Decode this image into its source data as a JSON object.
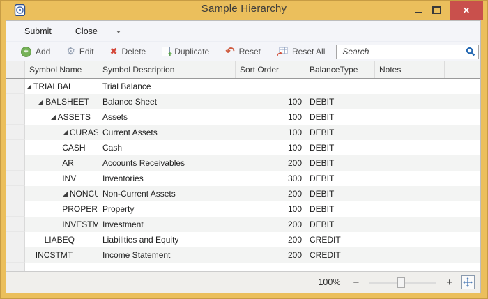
{
  "window": {
    "title": "Sample Hierarchy"
  },
  "titlebar": {
    "close_glyph": "✕",
    "buttons": [
      "minimize",
      "maximize",
      "close"
    ]
  },
  "menubar": {
    "items": [
      {
        "label": "Submit"
      },
      {
        "label": "Close"
      }
    ]
  },
  "toolbar": {
    "buttons": [
      {
        "id": "add",
        "label": "Add"
      },
      {
        "id": "edit",
        "label": "Edit"
      },
      {
        "id": "delete",
        "label": "Delete"
      },
      {
        "id": "duplicate",
        "label": "Duplicate"
      },
      {
        "id": "reset",
        "label": "Reset"
      },
      {
        "id": "reset-all",
        "label": "Reset All"
      }
    ],
    "icon_glyphs": {
      "add": "+",
      "edit": "⚙",
      "delete": "✖",
      "reset": "↶"
    },
    "search": {
      "placeholder": "Search",
      "value": ""
    }
  },
  "grid": {
    "columns": [
      {
        "key": "name",
        "label": "Symbol Name"
      },
      {
        "key": "desc",
        "label": "Symbol Description"
      },
      {
        "key": "sort",
        "label": "Sort Order"
      },
      {
        "key": "balance",
        "label": "BalanceType"
      },
      {
        "key": "notes",
        "label": "Notes"
      }
    ],
    "rows": [
      {
        "name": "TRIALBAL",
        "desc": "Trial Balance",
        "sort": "",
        "balance": "",
        "notes": "",
        "level": 1,
        "expandable": true,
        "expanded": true
      },
      {
        "name": "BALSHEET",
        "desc": "Balance Sheet",
        "sort": "100",
        "balance": "DEBIT",
        "notes": "",
        "level": 2,
        "expandable": true,
        "expanded": true
      },
      {
        "name": "ASSETS",
        "desc": "Assets",
        "sort": "100",
        "balance": "DEBIT",
        "notes": "",
        "level": 3,
        "expandable": true,
        "expanded": true
      },
      {
        "name": "CURASSETS",
        "desc": "Current Assets",
        "sort": "100",
        "balance": "DEBIT",
        "notes": "",
        "level": 4,
        "expandable": true,
        "expanded": true
      },
      {
        "name": "CASH",
        "desc": "Cash",
        "sort": "100",
        "balance": "DEBIT",
        "notes": "",
        "level": 5,
        "expandable": false,
        "expanded": false
      },
      {
        "name": "AR",
        "desc": "Accounts Receivables",
        "sort": "200",
        "balance": "DEBIT",
        "notes": "",
        "level": 5,
        "expandable": false,
        "expanded": false
      },
      {
        "name": "INV",
        "desc": "Inventories",
        "sort": "300",
        "balance": "DEBIT",
        "notes": "",
        "level": 5,
        "expandable": false,
        "expanded": false
      },
      {
        "name": "NONCURAS",
        "desc": "Non-Current Assets",
        "sort": "200",
        "balance": "DEBIT",
        "notes": "",
        "level": 4,
        "expandable": true,
        "expanded": true
      },
      {
        "name": "PROPERT",
        "desc": "Property",
        "sort": "100",
        "balance": "DEBIT",
        "notes": "",
        "level": 5,
        "expandable": false,
        "expanded": false
      },
      {
        "name": "INVESTM",
        "desc": "Investment",
        "sort": "200",
        "balance": "DEBIT",
        "notes": "",
        "level": 5,
        "expandable": false,
        "expanded": false
      },
      {
        "name": "LIABEQ",
        "desc": "Liabilities and Equity",
        "sort": "200",
        "balance": "CREDIT",
        "notes": "",
        "level": 3,
        "expandable": false,
        "expanded": false
      },
      {
        "name": "INCSTMT",
        "desc": "Income Statement",
        "sort": "200",
        "balance": "CREDIT",
        "notes": "",
        "level": 2,
        "expandable": false,
        "expanded": false
      }
    ]
  },
  "statusbar": {
    "zoom_level": "100%",
    "minus_glyph": "−",
    "plus_glyph": "+"
  },
  "colors": {
    "titlebar_gold": "#ebbf5c",
    "close_red": "#c9504c",
    "accent_blue": "#2468b2",
    "add_green": "#76b258",
    "delete_red": "#d4493b",
    "reset_orange": "#cf5c40"
  }
}
